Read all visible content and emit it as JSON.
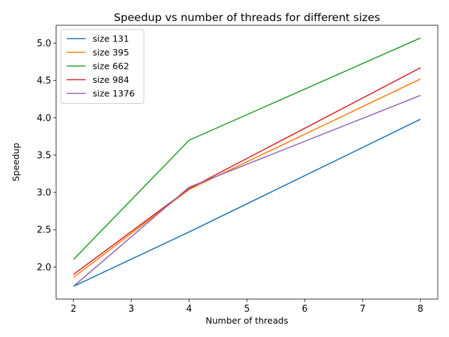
{
  "chart_data": {
    "type": "line",
    "title": "Speedup vs number of threads for different sizes",
    "xlabel": "Number of threads",
    "ylabel": "Speedup",
    "x": [
      2,
      4,
      8
    ],
    "xlim": [
      1.7,
      8.3
    ],
    "ylim": [
      1.57,
      5.24
    ],
    "xticks": [
      2,
      3,
      4,
      5,
      6,
      7,
      8
    ],
    "yticks": [
      "2.0",
      "2.5",
      "3.0",
      "3.5",
      "4.0",
      "4.5",
      "5.0"
    ],
    "grid": false,
    "legend_position": "top-left",
    "series": [
      {
        "name": "size 131",
        "color": "#1f77b4",
        "values": [
          1.74,
          2.47,
          3.98
        ]
      },
      {
        "name": "size 395",
        "color": "#ff7f0e",
        "values": [
          1.86,
          3.04,
          4.52
        ]
      },
      {
        "name": "size 662",
        "color": "#2ca02c",
        "values": [
          2.1,
          3.7,
          5.07
        ]
      },
      {
        "name": "size 984",
        "color": "#d62728",
        "values": [
          1.9,
          3.05,
          4.67
        ]
      },
      {
        "name": "size 1376",
        "color": "#9467bd",
        "values": [
          1.74,
          3.07,
          4.3
        ]
      }
    ]
  }
}
